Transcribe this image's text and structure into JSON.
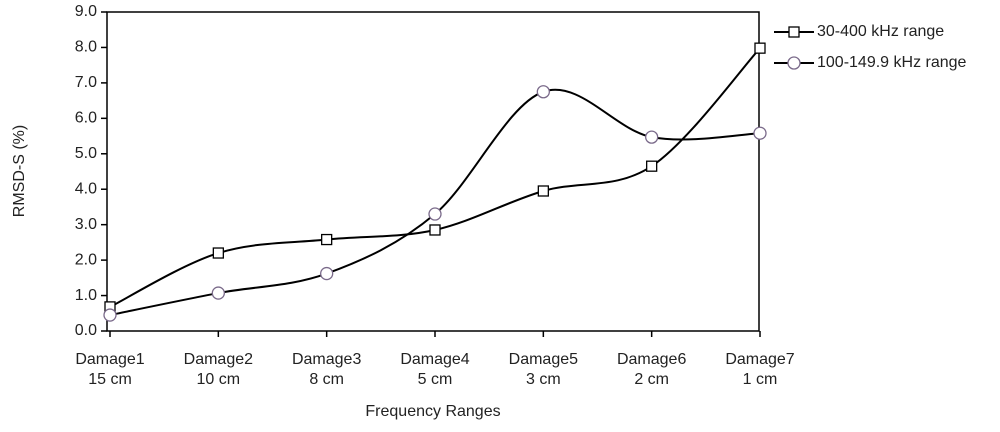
{
  "chart_data": {
    "type": "line",
    "y_label": "RMSD-S (%)",
    "x_label": "Frequency Ranges",
    "categories": [
      "Damage1\n15 cm",
      "Damage2\n10 cm",
      "Damage3\n8 cm",
      "Damage4\n5 cm",
      "Damage5\n3 cm",
      "Damage6\n2 cm",
      "Damage7\n1 cm"
    ],
    "series": [
      {
        "name": "30-400 kHz range",
        "color": "#000000",
        "marker": "square",
        "values": [
          0.68,
          2.2,
          2.58,
          2.85,
          3.95,
          4.65,
          7.98
        ]
      },
      {
        "name": "100-149.9 kHz range",
        "color": "#000000",
        "marker": "circle",
        "values": [
          0.45,
          1.07,
          1.62,
          3.3,
          6.75,
          5.47,
          5.58
        ]
      }
    ],
    "ylim": [
      0,
      9
    ],
    "yticks": [
      {
        "value": 0,
        "label": "0.0"
      },
      {
        "value": 1,
        "label": "1.0"
      },
      {
        "value": 2,
        "label": "2.0"
      },
      {
        "value": 3,
        "label": "3.0"
      },
      {
        "value": 4,
        "label": "4.0"
      },
      {
        "value": 5,
        "label": "5.0"
      },
      {
        "value": 6,
        "label": "6.0"
      },
      {
        "value": 7,
        "label": "7.0"
      },
      {
        "value": 8,
        "label": "8.0"
      },
      {
        "value": 9,
        "label": "9.0"
      }
    ],
    "grid": false,
    "legend": "right"
  }
}
